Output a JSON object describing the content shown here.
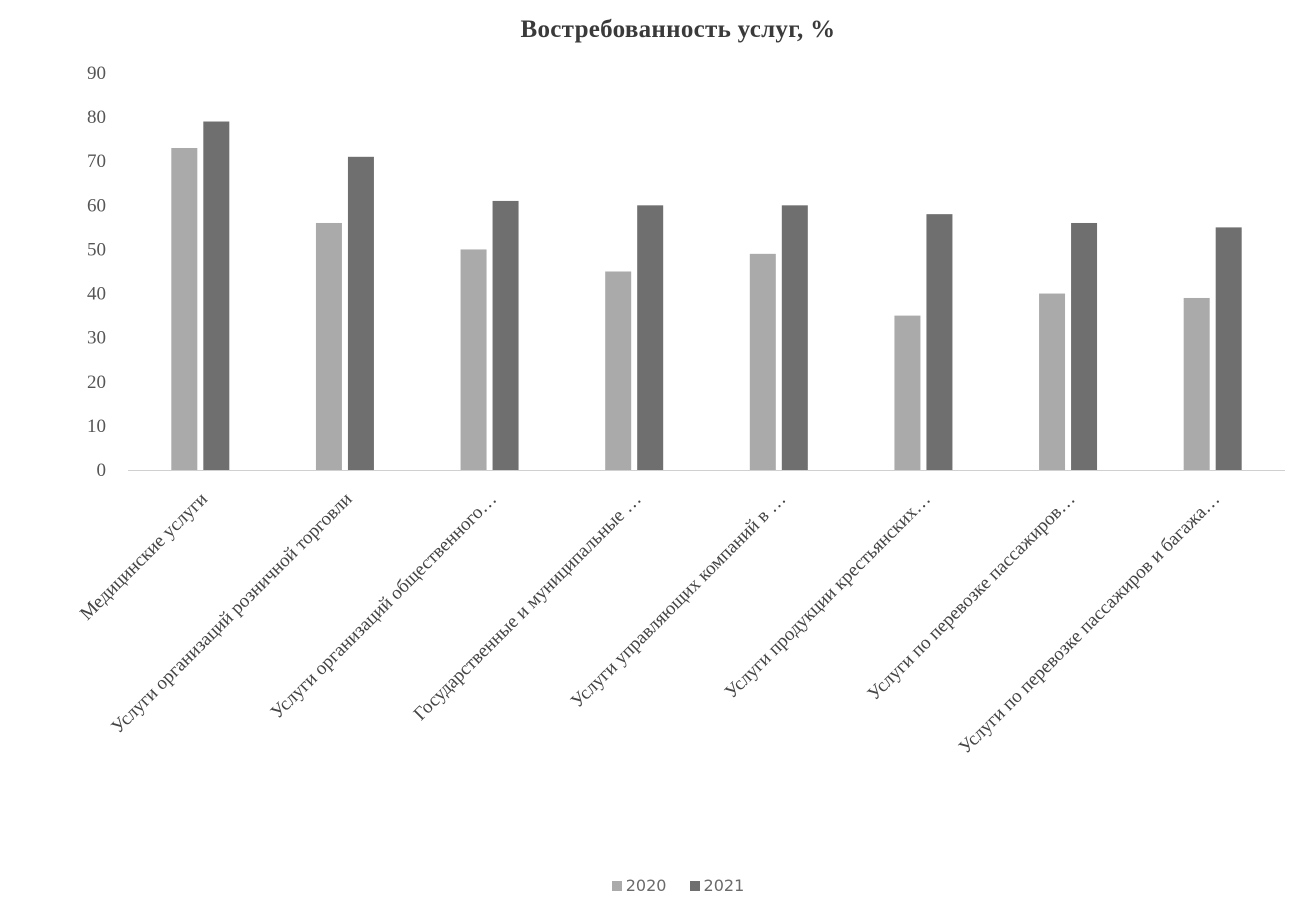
{
  "chart_data": {
    "type": "bar",
    "title": "Востребованность услуг, %",
    "xlabel": "",
    "ylabel": "",
    "ylim": [
      0,
      90
    ],
    "yticks": [
      0,
      10,
      20,
      30,
      40,
      50,
      60,
      70,
      80,
      90
    ],
    "grid": false,
    "legend_position": "bottom",
    "categories": [
      "Медицинские услуги",
      "Услуги организаций розничной торговли",
      "Услуги организаций общественного…",
      "Государственные и муниципальные …",
      "Услуги управляющих компаний в …",
      "Услуги продукции крестьянских…",
      "Услуги по перевозке пассажиров…",
      "Услуги по перевозке пассажиров и багажа…"
    ],
    "series": [
      {
        "name": "2020",
        "color": "#aaaaaa",
        "values": [
          73,
          56,
          50,
          45,
          49,
          35,
          40,
          39
        ]
      },
      {
        "name": "2021",
        "color": "#6f6f6f",
        "values": [
          79,
          71,
          61,
          60,
          60,
          58,
          56,
          55
        ]
      }
    ]
  }
}
